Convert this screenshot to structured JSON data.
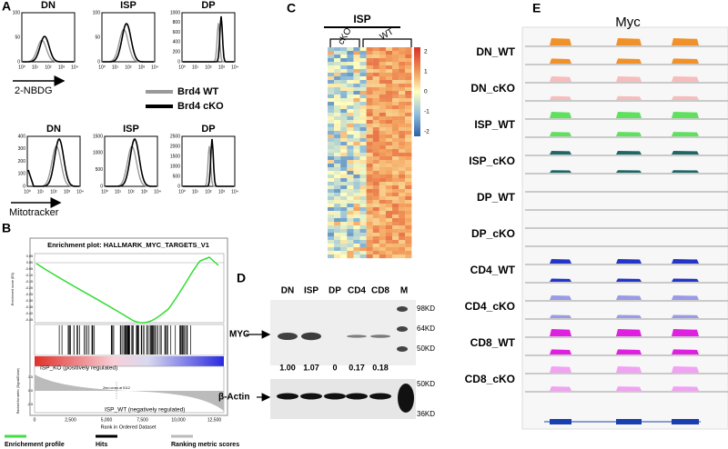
{
  "panels": {
    "a": {
      "label": "A",
      "top": {
        "titles": [
          "DN",
          "ISP",
          "DP"
        ],
        "yticks": [
          [
            "100",
            "50",
            "0"
          ],
          [
            "100",
            "50",
            "0"
          ],
          [
            "1000",
            "800",
            "600",
            "400",
            "200",
            "0"
          ]
        ],
        "xticks": [
          "10⁰",
          "10¹",
          "10²",
          "10³",
          "10⁴"
        ],
        "xlabel": "2-NBDG"
      },
      "legend": [
        {
          "name": "Brd4 WT",
          "color": "#999999"
        },
        {
          "name": "Brd4 cKO",
          "color": "#000000"
        }
      ],
      "bottom": {
        "titles": [
          "DN",
          "ISP",
          "DP"
        ],
        "yticks": [
          [
            "400",
            "300",
            "200",
            "100",
            "0"
          ],
          [
            "1500",
            "1000",
            "500",
            "0"
          ],
          [
            "2500",
            "2000",
            "1500",
            "1000",
            "500",
            "0"
          ]
        ],
        "xticks": [
          "10⁰",
          "10¹",
          "10²",
          "10³",
          "10⁴"
        ],
        "xlabel": "Mitotracker"
      }
    },
    "b": {
      "label": "B",
      "title": "Enrichment plot: HALLMARK_MYC_TARGETS_V1",
      "es_label": "Enrichment score (ES)",
      "es_ticks": [
        "0.05",
        "0.00",
        "-0.05",
        "-0.10",
        "-0.15",
        "-0.20",
        "-0.25",
        "-0.30",
        "-0.35",
        "-0.40",
        "-0.45"
      ],
      "metric_label": "Ranked list metric (Signal2Noise)",
      "metric_ticks": [
        "2.5",
        "0.0",
        "-2.5"
      ],
      "pos_label": "ISP_KO (positively regulated)",
      "zero_cross": "Zero cross at 5112",
      "neg_label": "ISP_WT (negatively regulated)",
      "xticks": [
        "0",
        "2,500",
        "5,000",
        "7,500",
        "10,000",
        "12,500"
      ],
      "xlabel": "Rank in Ordered Dataset",
      "legend": [
        {
          "name": "Enrichement profile",
          "color": "#44dd44"
        },
        {
          "name": "Hits",
          "color": "#000000"
        },
        {
          "name": "Ranking metric scores",
          "color": "#bbbbbb"
        }
      ]
    },
    "c": {
      "label": "C",
      "group": "ISP",
      "columns": [
        "cKO",
        "WT"
      ],
      "colorbar_ticks": [
        "2",
        "1",
        "0",
        "-1",
        "-2"
      ]
    },
    "d": {
      "label": "D",
      "lanes": [
        "DN",
        "ISP",
        "DP",
        "CD4",
        "CD8",
        "M"
      ],
      "myc": "MYC",
      "ratios": [
        "1.00",
        "1.07",
        "0",
        "0.17",
        "0.18"
      ],
      "actin": "β-Actin",
      "markers": [
        "98KD",
        "64KD",
        "50KD",
        "50KD",
        "36KD"
      ]
    },
    "e": {
      "label": "E",
      "gene": "Myc",
      "tracks": [
        {
          "name": "DN_WT",
          "color": "#f0912a"
        },
        {
          "name": "DN_cKO",
          "color": "#f7bcbc"
        },
        {
          "name": "ISP_WT",
          "color": "#5fe05f"
        },
        {
          "name": "ISP_cKO",
          "color": "#1f6666"
        },
        {
          "name": "DP_WT",
          "color": "#cccccc"
        },
        {
          "name": "DP_cKO",
          "color": "#cccccc"
        },
        {
          "name": "CD4_WT",
          "color": "#2436c8"
        },
        {
          "name": "CD4_cKO",
          "color": "#9a9ae6"
        },
        {
          "name": "CD8_WT",
          "color": "#e020e0"
        },
        {
          "name": "CD8_cKO",
          "color": "#f2a2f2"
        }
      ]
    }
  }
}
